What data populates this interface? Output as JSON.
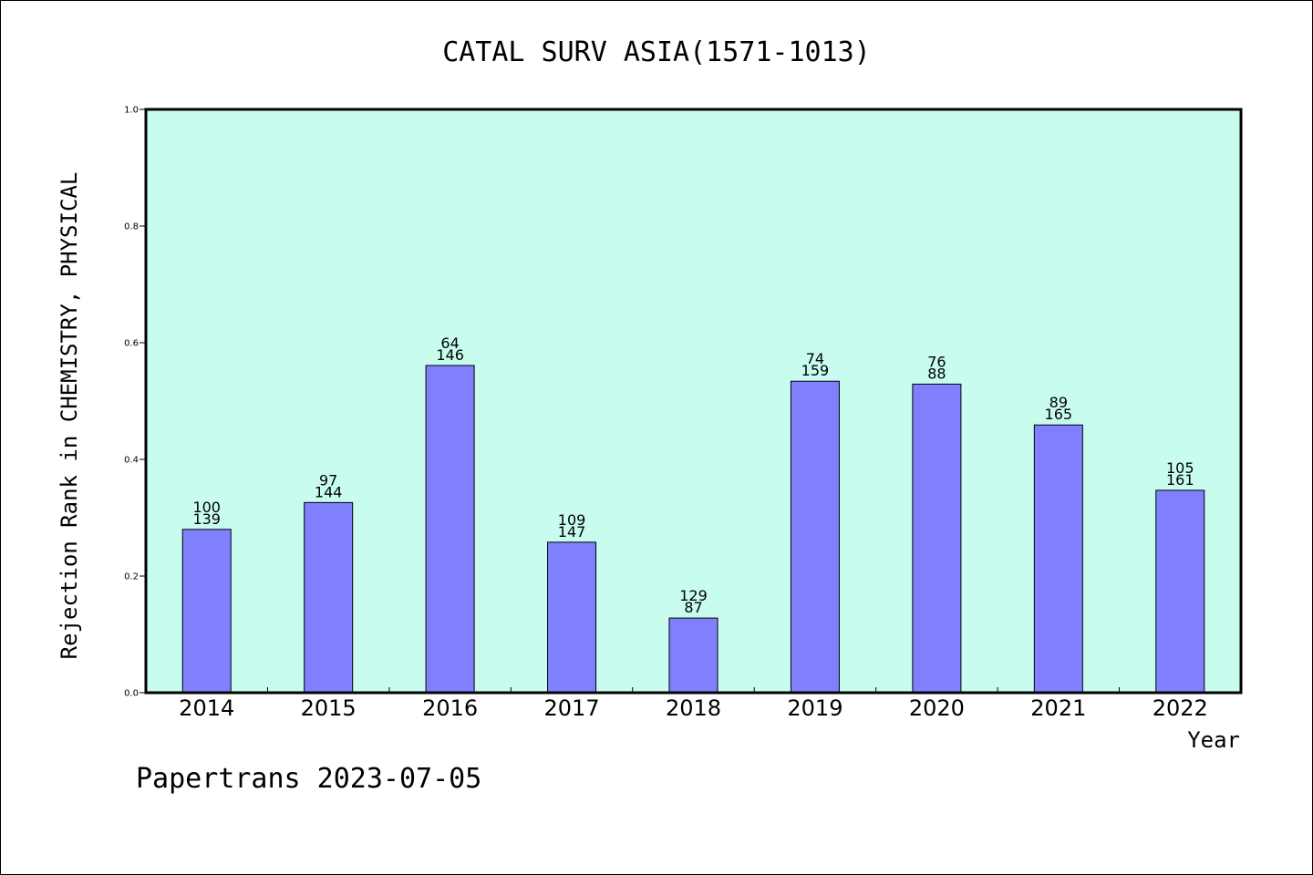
{
  "chart_data": {
    "type": "bar",
    "title": "CATAL SURV ASIA(1571-1013)",
    "xlabel": "Year",
    "ylabel": "Rejection Rank in CHEMISTRY, PHYSICAL",
    "ylim": [
      0,
      1.0
    ],
    "yticks": [
      "0.0",
      "0.2",
      "0.4",
      "0.6",
      "0.8",
      "1.0"
    ],
    "grid": false,
    "categories": [
      "2014",
      "2015",
      "2016",
      "2017",
      "2018",
      "2019",
      "2020",
      "2021",
      "2022"
    ],
    "values": [
      0.28,
      0.326,
      0.561,
      0.258,
      0.128,
      0.534,
      0.529,
      0.459,
      0.347
    ],
    "labels_top": [
      "100",
      "97",
      "64",
      "109",
      "129",
      "74",
      "76",
      "89",
      "105"
    ],
    "labels_bottom": [
      "139",
      "144",
      "146",
      "147",
      "87",
      "159",
      "88",
      "165",
      "161"
    ],
    "colors": {
      "plot_background": "#c8fcef",
      "bar_fill": "#8080ff",
      "bar_stroke": "#000000"
    }
  },
  "footer": "Papertrans 2023-07-05"
}
